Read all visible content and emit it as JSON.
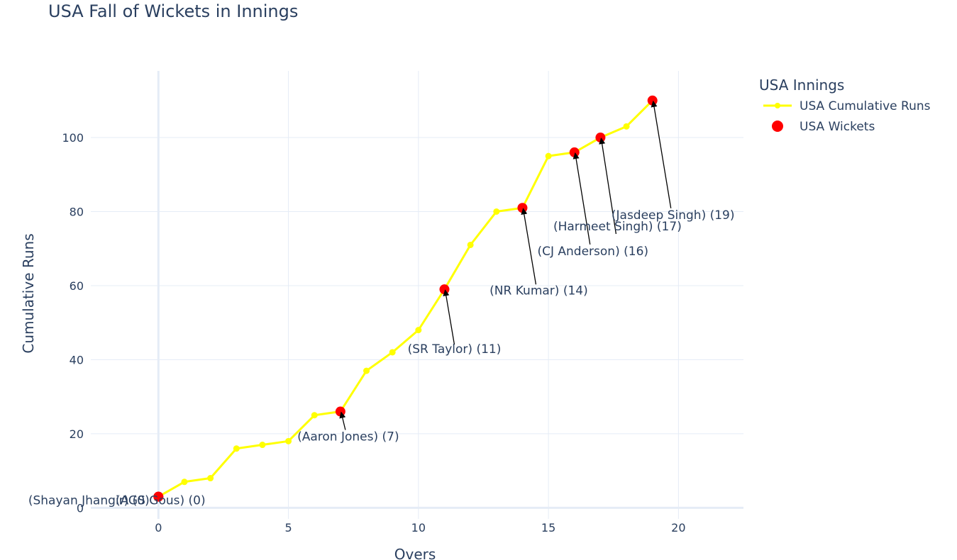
{
  "chart_data": {
    "type": "line",
    "title": "USA Fall of Wickets in Innings",
    "xlabel": "Overs",
    "ylabel": "Cumulative Runs",
    "xlim": [
      -2.6,
      22.5
    ],
    "ylim": [
      -3,
      118
    ],
    "x_ticks": [
      0,
      5,
      10,
      15,
      20
    ],
    "y_ticks": [
      0,
      20,
      40,
      60,
      80,
      100
    ],
    "grid": true,
    "legend": {
      "title": "USA Innings",
      "placement": "top-right"
    },
    "series": [
      {
        "name": "USA Cumulative Runs",
        "color": "#ffff00",
        "mode": "lines+markers",
        "x": [
          0,
          1,
          2,
          3,
          4,
          5,
          6,
          7,
          8,
          9,
          10,
          11,
          12,
          13,
          14,
          15,
          16,
          17,
          18,
          19
        ],
        "y": [
          3,
          7,
          8,
          16,
          17,
          18,
          25,
          26,
          37,
          42,
          48,
          59,
          71,
          80,
          81,
          95,
          96,
          100,
          103,
          110
        ]
      },
      {
        "name": "USA Wickets",
        "color": "#ff0000",
        "mode": "markers",
        "x": [
          0,
          0,
          7,
          11,
          14,
          16,
          17,
          19
        ],
        "y": [
          3,
          3,
          26,
          59,
          81,
          96,
          100,
          110
        ]
      }
    ],
    "annotations": [
      {
        "text": "(Shayan Jhangir) (0)",
        "x": 0,
        "y": 3
      },
      {
        "text": "(AGS Gous) (0)",
        "x": 0,
        "y": 3
      },
      {
        "text": "(Aaron Jones) (7)",
        "x": 7,
        "y": 26
      },
      {
        "text": "(SR Taylor) (11)",
        "x": 11,
        "y": 59
      },
      {
        "text": "(NR Kumar) (14)",
        "x": 14,
        "y": 81
      },
      {
        "text": "(CJ Anderson) (16)",
        "x": 16,
        "y": 96
      },
      {
        "text": "(Harmeet Singh) (17)",
        "x": 17,
        "y": 100
      },
      {
        "text": "(Jasdeep Singh) (19)",
        "x": 19,
        "y": 110
      }
    ]
  }
}
